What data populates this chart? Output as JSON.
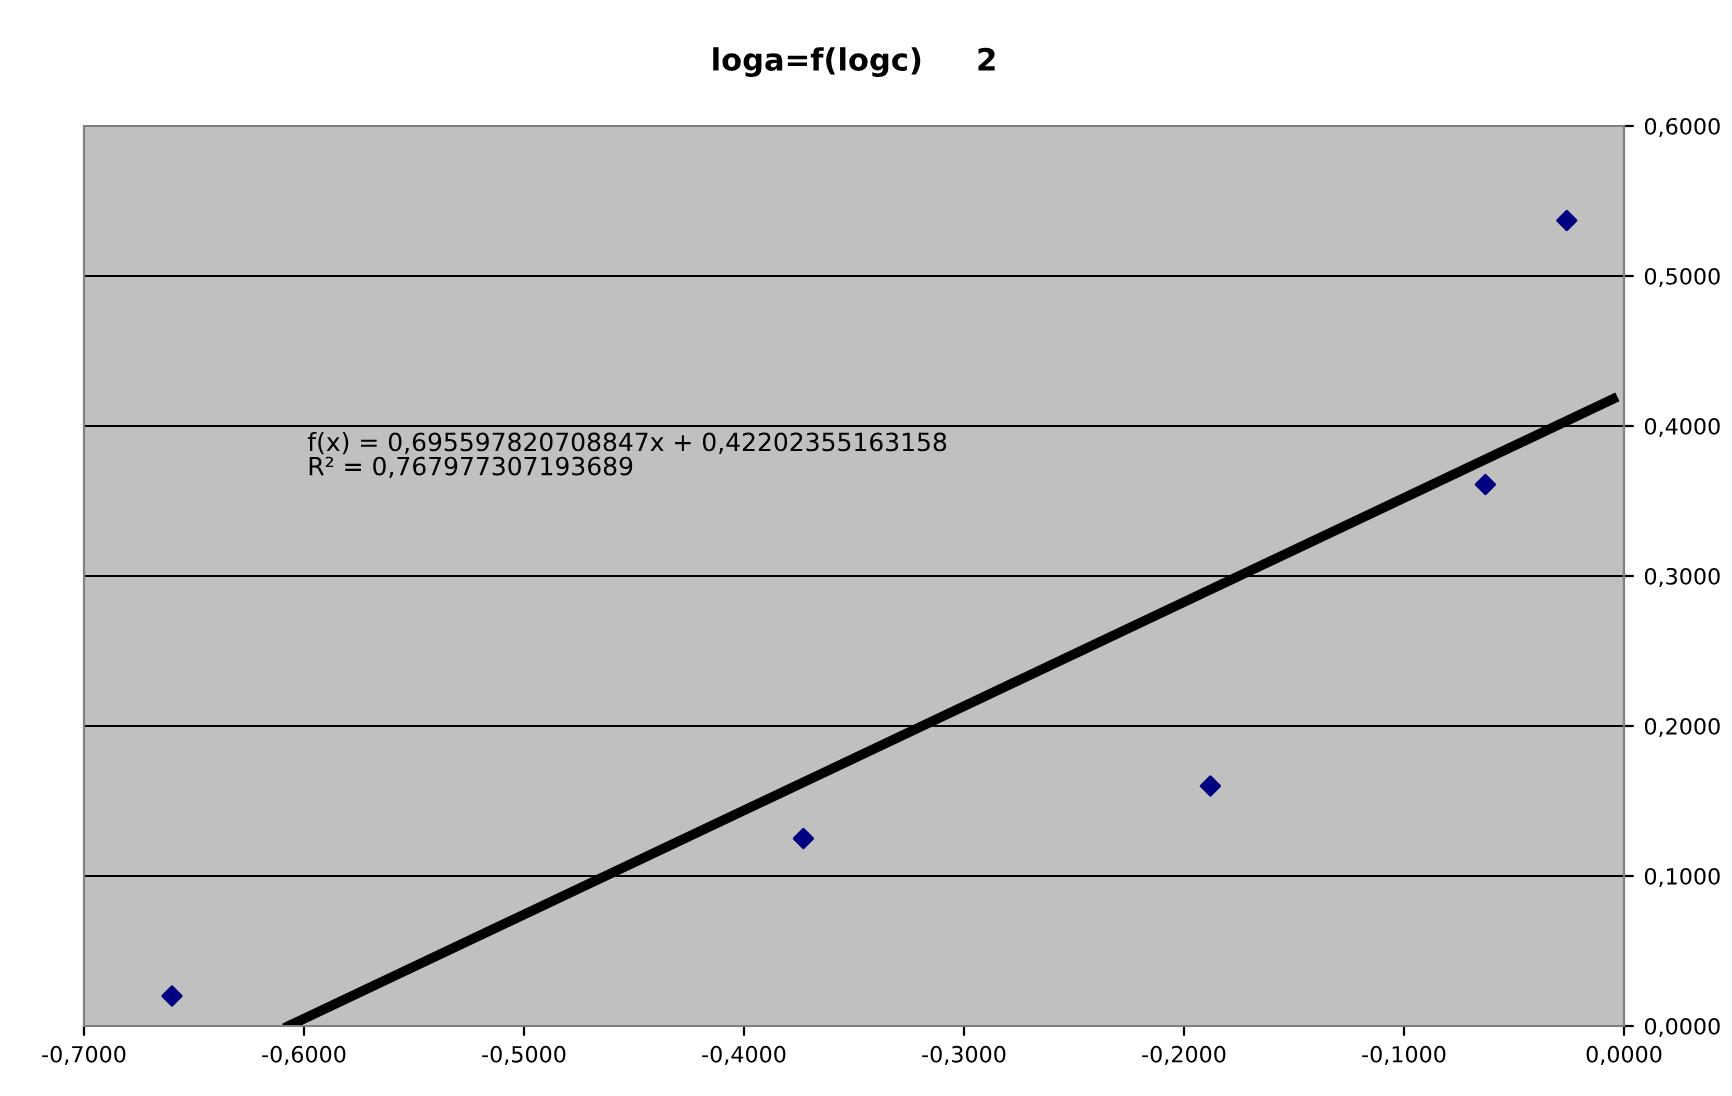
{
  "chart_data": {
    "type": "scatter",
    "title": "loga=f(logc)     2",
    "series": [
      {
        "color": "#000080",
        "marker": "diamond",
        "x": [
          -0.66,
          -0.373,
          -0.188,
          -0.063,
          -0.026
        ],
        "values": [
          0.02,
          0.125,
          0.16,
          0.361,
          0.537
        ]
      },
      {
        "type": "line",
        "color": "#000000",
        "marker": "none",
        "line_style": "solid",
        "x": [
          -0.607,
          -0.005
        ],
        "values": [
          0.0,
          0.418
        ]
      }
    ],
    "annotations": [
      "f(x) = 0,695597820708847x + 0,42202355163158\nR² = 0,767977307193689"
    ],
    "xlim": [
      -0.7,
      0.0
    ],
    "xticks": [
      {
        "value": -0.7,
        "label": "-0,7000"
      },
      {
        "value": -0.6,
        "label": "-0,6000"
      },
      {
        "value": -0.5,
        "label": "-0,5000"
      },
      {
        "value": -0.4,
        "label": "-0,4000"
      },
      {
        "value": -0.3,
        "label": "-0,3000"
      },
      {
        "value": -0.2,
        "label": "-0,2000"
      },
      {
        "value": -0.1,
        "label": "-0,1000"
      },
      {
        "value": 0.0,
        "label": "0,0000"
      }
    ],
    "ylim": [
      0.0,
      0.6
    ],
    "yticks": [
      {
        "value": 0.0,
        "label": "0,0000"
      },
      {
        "value": 0.1,
        "label": "0,1000"
      },
      {
        "value": 0.2,
        "label": "0,2000"
      },
      {
        "value": 0.3,
        "label": "0,3000"
      },
      {
        "value": 0.4,
        "label": "0,4000"
      },
      {
        "value": 0.5,
        "label": "0,5000"
      },
      {
        "value": 0.6,
        "label": "0,6000"
      }
    ],
    "grid": "y"
  }
}
